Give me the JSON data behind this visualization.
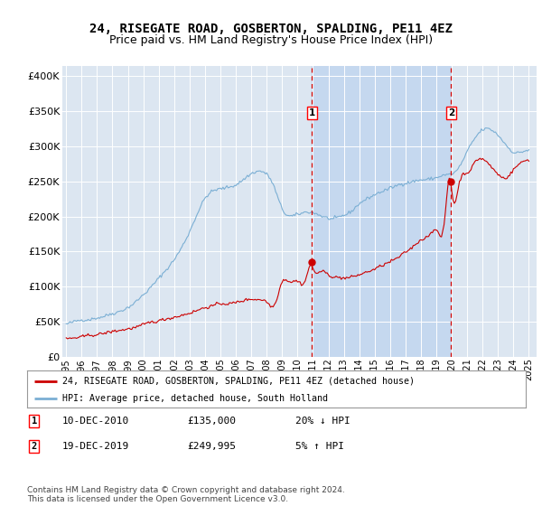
{
  "title": "24, RISEGATE ROAD, GOSBERTON, SPALDING, PE11 4EZ",
  "subtitle": "Price paid vs. HM Land Registry's House Price Index (HPI)",
  "title_fontsize": 10,
  "subtitle_fontsize": 9,
  "ylabel_ticks": [
    "£0",
    "£50K",
    "£100K",
    "£150K",
    "£200K",
    "£250K",
    "£300K",
    "£350K",
    "£400K"
  ],
  "ytick_values": [
    0,
    50000,
    100000,
    150000,
    200000,
    250000,
    300000,
    350000,
    400000
  ],
  "ylim": [
    0,
    415000
  ],
  "xlim_start": 1994.75,
  "xlim_end": 2025.5,
  "xtick_years": [
    1995,
    1996,
    1997,
    1998,
    1999,
    2000,
    2001,
    2002,
    2003,
    2004,
    2005,
    2006,
    2007,
    2008,
    2009,
    2010,
    2011,
    2012,
    2013,
    2014,
    2015,
    2016,
    2017,
    2018,
    2019,
    2020,
    2021,
    2022,
    2023,
    2024,
    2025
  ],
  "background_color": "#ffffff",
  "plot_bg_color": "#dce6f1",
  "grid_color": "#ffffff",
  "hpi_color": "#7bafd4",
  "hpi_fill_color": "#c5d8ef",
  "price_color": "#cc0000",
  "shade_color": "#c5d8ef",
  "sale1_x": 2010.917,
  "sale1_y": 135000,
  "sale1_label": "1",
  "sale1_date": "10-DEC-2010",
  "sale1_price": "£135,000",
  "sale1_hpi": "20% ↓ HPI",
  "sale2_x": 2019.958,
  "sale2_y": 249995,
  "sale2_label": "2",
  "sale2_date": "19-DEC-2019",
  "sale2_price": "£249,995",
  "sale2_hpi": "5% ↑ HPI",
  "legend_line1": "24, RISEGATE ROAD, GOSBERTON, SPALDING, PE11 4EZ (detached house)",
  "legend_line2": "HPI: Average price, detached house, South Holland",
  "footer": "Contains HM Land Registry data © Crown copyright and database right 2024.\nThis data is licensed under the Open Government Licence v3.0."
}
